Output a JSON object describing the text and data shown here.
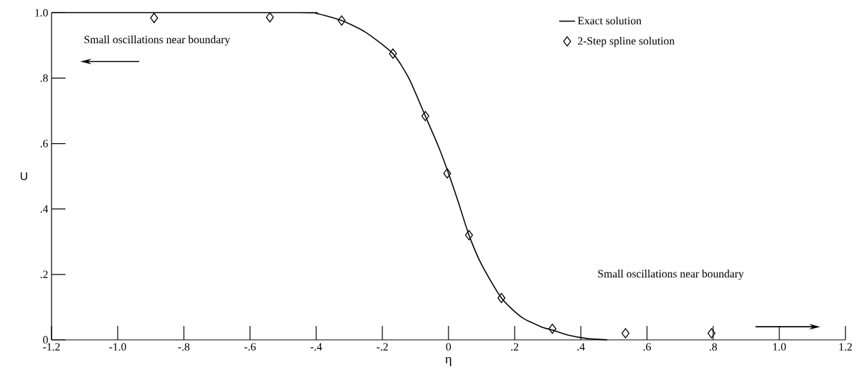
{
  "chart_data": {
    "type": "line",
    "xlabel": "η",
    "ylabel": "U",
    "xlim": [
      -1.2,
      1.2
    ],
    "ylim": [
      0,
      1.0
    ],
    "xticks": [
      {
        "value": -1.2,
        "label": "-1.2"
      },
      {
        "value": -1.0,
        "label": "-1.0"
      },
      {
        "value": -0.8,
        "label": "-.8"
      },
      {
        "value": -0.6,
        "label": "-.6"
      },
      {
        "value": -0.4,
        "label": "-.4"
      },
      {
        "value": -0.2,
        "label": "-.2"
      },
      0,
      {
        "value": 0.2,
        "label": ".2"
      },
      {
        "value": 0.4,
        "label": ".4"
      },
      {
        "value": 0.6,
        "label": ".6"
      },
      {
        "value": 0.8,
        "label": ".8"
      },
      {
        "value": 1.0,
        "label": "1.0"
      },
      {
        "value": 1.2,
        "label": "1.2"
      }
    ],
    "yticks": [
      0,
      {
        "value": 0.2,
        "label": ".2"
      },
      {
        "value": 0.4,
        "label": ".4"
      },
      {
        "value": 0.6,
        "label": ".6"
      },
      {
        "value": 0.8,
        "label": ".8"
      },
      {
        "value": 1.0,
        "label": "1.0"
      }
    ],
    "grid": false,
    "legend": "top right",
    "series": [
      {
        "name": "Exact solution",
        "color": "#000000",
        "marker": "none",
        "line_style": "solid",
        "x": [
          -1.2,
          -0.45,
          -0.4,
          -0.323,
          -0.25,
          -0.168,
          -0.12,
          -0.07,
          -0.03,
          0,
          0.03,
          0.062,
          0.1,
          0.16,
          0.22,
          0.28,
          0.314,
          0.36,
          0.42,
          0.48
        ],
        "values": [
          1,
          1,
          0.998,
          0.976,
          0.94,
          0.875,
          0.8,
          0.684,
          0.59,
          0.509,
          0.42,
          0.32,
          0.23,
          0.128,
          0.07,
          0.04,
          0.03,
          0.015,
          0.004,
          0
        ]
      },
      {
        "name": "2-Step spline solution",
        "type": "scatter",
        "color": "#000000",
        "marker": "diamond",
        "x": [
          -0.89,
          -0.54,
          -0.323,
          -0.168,
          -0.07,
          -0.004,
          0.062,
          0.16,
          0.314,
          0.535,
          0.795
        ],
        "values": [
          0.984,
          0.986,
          0.976,
          0.875,
          0.684,
          0.509,
          0.32,
          0.128,
          0.034,
          0.02,
          0.02
        ]
      }
    ],
    "annotations": [
      "Small oscillations near boundary",
      "Small oscillations near boundary"
    ]
  }
}
